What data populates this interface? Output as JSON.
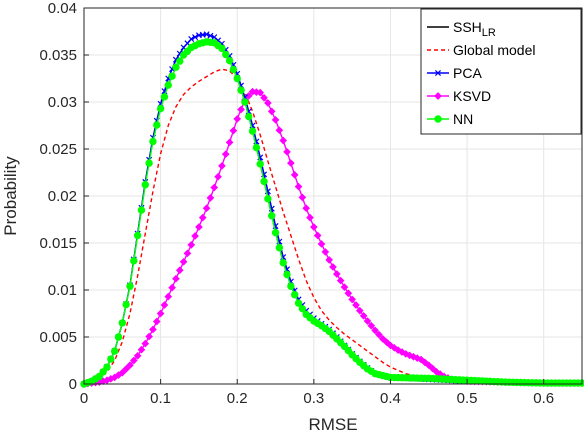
{
  "chart_data": {
    "type": "line",
    "xlabel": "RMSE",
    "ylabel": "Probability",
    "xlim": [
      0,
      0.65
    ],
    "ylim": [
      0,
      0.04
    ],
    "xticks": [
      0,
      0.1,
      0.2,
      0.3,
      0.4,
      0.5,
      0.6
    ],
    "xtick_labels": [
      "0",
      "0.1",
      "0.2",
      "0.3",
      "0.4",
      "0.5",
      "0.6"
    ],
    "yticks": [
      0,
      0.005,
      0.01,
      0.015,
      0.02,
      0.025,
      0.03,
      0.035,
      0.04
    ],
    "ytick_labels": [
      "0",
      "0.005",
      "0.01",
      "0.015",
      "0.02",
      "0.025",
      "0.03",
      "0.035",
      "0.04"
    ],
    "grid": true,
    "legend_position": "top-right",
    "series": [
      {
        "name": "SSH",
        "name_subscript": "LR",
        "color": "#000000",
        "style": "solid",
        "marker": "none",
        "points": [
          [
            0,
            0
          ],
          [
            0.01,
            0.0003
          ],
          [
            0.02,
            0.0008
          ],
          [
            0.03,
            0.0018
          ],
          [
            0.04,
            0.0035
          ],
          [
            0.05,
            0.0065
          ],
          [
            0.06,
            0.0105
          ],
          [
            0.07,
            0.016
          ],
          [
            0.08,
            0.0215
          ],
          [
            0.09,
            0.0262
          ],
          [
            0.1,
            0.0298
          ],
          [
            0.11,
            0.0325
          ],
          [
            0.12,
            0.0345
          ],
          [
            0.13,
            0.0358
          ],
          [
            0.14,
            0.0367
          ],
          [
            0.15,
            0.0371
          ],
          [
            0.16,
            0.0372
          ],
          [
            0.17,
            0.0369
          ],
          [
            0.18,
            0.0362
          ],
          [
            0.19,
            0.0349
          ],
          [
            0.2,
            0.033
          ],
          [
            0.21,
            0.0305
          ],
          [
            0.22,
            0.0275
          ],
          [
            0.23,
            0.0241
          ],
          [
            0.24,
            0.0205
          ],
          [
            0.25,
            0.0168
          ],
          [
            0.26,
            0.0135
          ],
          [
            0.27,
            0.0109
          ],
          [
            0.28,
            0.009
          ],
          [
            0.29,
            0.0078
          ],
          [
            0.3,
            0.007
          ],
          [
            0.31,
            0.0064
          ],
          [
            0.32,
            0.0058
          ],
          [
            0.33,
            0.005
          ],
          [
            0.34,
            0.0041
          ],
          [
            0.35,
            0.0032
          ],
          [
            0.36,
            0.0024
          ],
          [
            0.37,
            0.0017
          ],
          [
            0.38,
            0.0011
          ],
          [
            0.4,
            0.0007
          ],
          [
            0.45,
            0.0005
          ],
          [
            0.5,
            0.0003
          ],
          [
            0.55,
            0.0002
          ],
          [
            0.6,
            0.0001
          ],
          [
            0.65,
            0.0001
          ]
        ]
      },
      {
        "name": "Global model",
        "color": "#ff0000",
        "style": "dashed",
        "marker": "none",
        "points": [
          [
            0,
            0
          ],
          [
            0.01,
            0.0002
          ],
          [
            0.02,
            0.0006
          ],
          [
            0.03,
            0.0013
          ],
          [
            0.04,
            0.0025
          ],
          [
            0.05,
            0.0045
          ],
          [
            0.06,
            0.0075
          ],
          [
            0.07,
            0.0115
          ],
          [
            0.08,
            0.016
          ],
          [
            0.09,
            0.0205
          ],
          [
            0.1,
            0.0245
          ],
          [
            0.11,
            0.0275
          ],
          [
            0.12,
            0.0295
          ],
          [
            0.13,
            0.0308
          ],
          [
            0.14,
            0.0316
          ],
          [
            0.15,
            0.0322
          ],
          [
            0.16,
            0.0327
          ],
          [
            0.17,
            0.0332
          ],
          [
            0.18,
            0.0335
          ],
          [
            0.19,
            0.0333
          ],
          [
            0.2,
            0.0325
          ],
          [
            0.21,
            0.031
          ],
          [
            0.22,
            0.029
          ],
          [
            0.23,
            0.0265
          ],
          [
            0.24,
            0.0237
          ],
          [
            0.25,
            0.021
          ],
          [
            0.26,
            0.0183
          ],
          [
            0.27,
            0.0158
          ],
          [
            0.28,
            0.0133
          ],
          [
            0.29,
            0.011
          ],
          [
            0.3,
            0.0092
          ],
          [
            0.31,
            0.0078
          ],
          [
            0.32,
            0.0068
          ],
          [
            0.33,
            0.006
          ],
          [
            0.34,
            0.0053
          ],
          [
            0.35,
            0.0047
          ],
          [
            0.36,
            0.0041
          ],
          [
            0.37,
            0.0035
          ],
          [
            0.38,
            0.0029
          ],
          [
            0.39,
            0.0023
          ],
          [
            0.4,
            0.0018
          ],
          [
            0.42,
            0.0011
          ],
          [
            0.45,
            0.0005
          ],
          [
            0.5,
            0.0002
          ],
          [
            0.55,
            0.0001
          ],
          [
            0.65,
            0
          ]
        ]
      },
      {
        "name": "PCA",
        "color": "#0000ff",
        "style": "solid",
        "marker": "x",
        "points": [
          [
            0,
            0
          ],
          [
            0.01,
            0.0003
          ],
          [
            0.02,
            0.0008
          ],
          [
            0.03,
            0.0018
          ],
          [
            0.04,
            0.0035
          ],
          [
            0.05,
            0.0065
          ],
          [
            0.06,
            0.0105
          ],
          [
            0.07,
            0.016
          ],
          [
            0.08,
            0.0215
          ],
          [
            0.09,
            0.0262
          ],
          [
            0.1,
            0.0298
          ],
          [
            0.11,
            0.0325
          ],
          [
            0.12,
            0.0345
          ],
          [
            0.13,
            0.0358
          ],
          [
            0.14,
            0.0367
          ],
          [
            0.15,
            0.0371
          ],
          [
            0.16,
            0.0372
          ],
          [
            0.17,
            0.0369
          ],
          [
            0.18,
            0.0362
          ],
          [
            0.19,
            0.0349
          ],
          [
            0.2,
            0.033
          ],
          [
            0.21,
            0.0305
          ],
          [
            0.22,
            0.0275
          ],
          [
            0.23,
            0.0241
          ],
          [
            0.24,
            0.0205
          ],
          [
            0.25,
            0.0168
          ],
          [
            0.26,
            0.0135
          ],
          [
            0.27,
            0.0109
          ],
          [
            0.28,
            0.009
          ],
          [
            0.29,
            0.0078
          ],
          [
            0.3,
            0.007
          ],
          [
            0.31,
            0.0064
          ],
          [
            0.32,
            0.0058
          ],
          [
            0.33,
            0.005
          ],
          [
            0.34,
            0.0041
          ],
          [
            0.35,
            0.0032
          ],
          [
            0.36,
            0.0024
          ],
          [
            0.37,
            0.0017
          ],
          [
            0.38,
            0.0011
          ],
          [
            0.4,
            0.0007
          ],
          [
            0.45,
            0.0005
          ],
          [
            0.5,
            0.0003
          ],
          [
            0.55,
            0.0002
          ],
          [
            0.6,
            0.0001
          ],
          [
            0.65,
            0.0001
          ]
        ]
      },
      {
        "name": "KSVD",
        "color": "#ff00ff",
        "style": "solid",
        "marker": "diamond",
        "points": [
          [
            0,
            0
          ],
          [
            0.01,
            0.0001
          ],
          [
            0.02,
            0.0002
          ],
          [
            0.03,
            0.0004
          ],
          [
            0.04,
            0.0007
          ],
          [
            0.05,
            0.0012
          ],
          [
            0.06,
            0.002
          ],
          [
            0.07,
            0.003
          ],
          [
            0.08,
            0.0043
          ],
          [
            0.09,
            0.0058
          ],
          [
            0.1,
            0.0075
          ],
          [
            0.11,
            0.0093
          ],
          [
            0.12,
            0.0112
          ],
          [
            0.13,
            0.013
          ],
          [
            0.14,
            0.0148
          ],
          [
            0.15,
            0.0167
          ],
          [
            0.16,
            0.0187
          ],
          [
            0.17,
            0.0209
          ],
          [
            0.18,
            0.0232
          ],
          [
            0.19,
            0.0257
          ],
          [
            0.2,
            0.0282
          ],
          [
            0.21,
            0.0302
          ],
          [
            0.22,
            0.0311
          ],
          [
            0.23,
            0.031
          ],
          [
            0.24,
            0.0299
          ],
          [
            0.25,
            0.0281
          ],
          [
            0.26,
            0.0259
          ],
          [
            0.27,
            0.0235
          ],
          [
            0.28,
            0.021
          ],
          [
            0.29,
            0.0187
          ],
          [
            0.3,
            0.0167
          ],
          [
            0.31,
            0.0149
          ],
          [
            0.32,
            0.0132
          ],
          [
            0.33,
            0.0117
          ],
          [
            0.34,
            0.0103
          ],
          [
            0.35,
            0.009
          ],
          [
            0.36,
            0.0078
          ],
          [
            0.37,
            0.0067
          ],
          [
            0.38,
            0.0057
          ],
          [
            0.39,
            0.0048
          ],
          [
            0.4,
            0.0041
          ],
          [
            0.41,
            0.0036
          ],
          [
            0.42,
            0.0032
          ],
          [
            0.43,
            0.0029
          ],
          [
            0.44,
            0.0026
          ],
          [
            0.45,
            0.002
          ],
          [
            0.46,
            0.0013
          ],
          [
            0.47,
            0.0008
          ],
          [
            0.48,
            0.0005
          ],
          [
            0.5,
            0.0003
          ],
          [
            0.55,
            0.0002
          ],
          [
            0.6,
            0.0001
          ],
          [
            0.65,
            0.0001
          ]
        ]
      },
      {
        "name": "NN",
        "color": "#00ff00",
        "style": "solid",
        "marker": "circle",
        "points": [
          [
            0,
            0
          ],
          [
            0.01,
            0.0003
          ],
          [
            0.02,
            0.0008
          ],
          [
            0.03,
            0.0018
          ],
          [
            0.04,
            0.0035
          ],
          [
            0.05,
            0.0065
          ],
          [
            0.06,
            0.0104
          ],
          [
            0.07,
            0.0158
          ],
          [
            0.08,
            0.0212
          ],
          [
            0.09,
            0.0258
          ],
          [
            0.1,
            0.0293
          ],
          [
            0.11,
            0.0318
          ],
          [
            0.12,
            0.0337
          ],
          [
            0.13,
            0.035
          ],
          [
            0.14,
            0.0358
          ],
          [
            0.15,
            0.0362
          ],
          [
            0.16,
            0.0364
          ],
          [
            0.17,
            0.0363
          ],
          [
            0.18,
            0.0357
          ],
          [
            0.19,
            0.0344
          ],
          [
            0.2,
            0.0325
          ],
          [
            0.21,
            0.03
          ],
          [
            0.22,
            0.0269
          ],
          [
            0.23,
            0.0234
          ],
          [
            0.24,
            0.0197
          ],
          [
            0.25,
            0.0161
          ],
          [
            0.26,
            0.0129
          ],
          [
            0.27,
            0.0104
          ],
          [
            0.28,
            0.0086
          ],
          [
            0.29,
            0.0074
          ],
          [
            0.3,
            0.0067
          ],
          [
            0.31,
            0.0062
          ],
          [
            0.32,
            0.0056
          ],
          [
            0.33,
            0.0048
          ],
          [
            0.34,
            0.004
          ],
          [
            0.35,
            0.0031
          ],
          [
            0.36,
            0.0023
          ],
          [
            0.37,
            0.0016
          ],
          [
            0.38,
            0.0011
          ],
          [
            0.4,
            0.0007
          ],
          [
            0.45,
            0.0006
          ],
          [
            0.5,
            0.0004
          ],
          [
            0.55,
            0.0002
          ],
          [
            0.6,
            0.0001
          ],
          [
            0.65,
            0.0001
          ]
        ]
      }
    ]
  }
}
